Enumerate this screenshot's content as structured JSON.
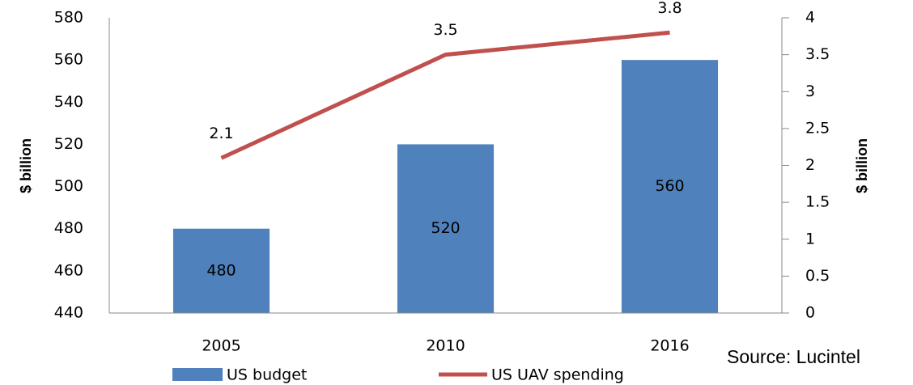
{
  "chart_data": {
    "type": "bar",
    "categories": [
      "2005",
      "2010",
      "2016"
    ],
    "series": [
      {
        "name": "US budget",
        "type": "bar",
        "color": "#4f81bd",
        "values": [
          480,
          520,
          560
        ]
      },
      {
        "name": "US UAV spending",
        "type": "line",
        "axis": "y2",
        "color": "#c0504d",
        "values": [
          2.1,
          3.5,
          3.8
        ]
      }
    ],
    "ylim": [
      440,
      580
    ],
    "yticks": [
      440,
      460,
      480,
      500,
      520,
      540,
      560,
      580
    ],
    "y2lim": [
      0,
      4
    ],
    "y2ticks": [
      0,
      0.5,
      1,
      1.5,
      2,
      2.5,
      3,
      3.5,
      4
    ],
    "ylabel": "$ billion",
    "y2label": "$ billion",
    "source": "Source: Lucintel",
    "legend": "bottom",
    "grid": false
  }
}
